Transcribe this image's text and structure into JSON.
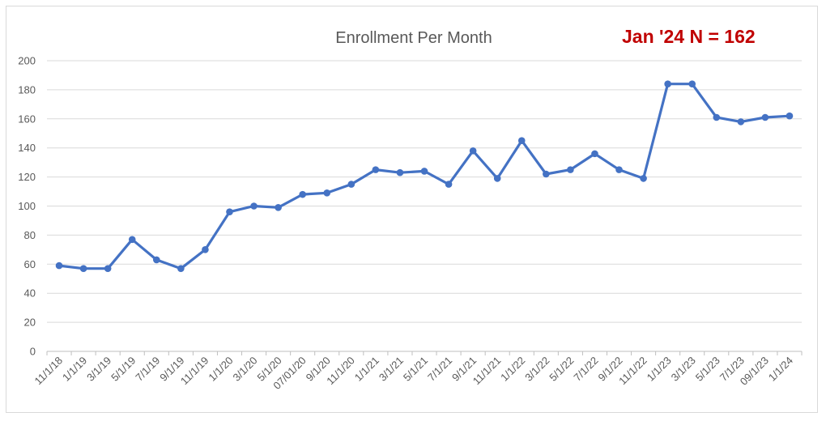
{
  "chart_data": {
    "type": "line",
    "title": "Enrollment Per Month",
    "annotation": "Jan '24 N = 162",
    "xlabel": "",
    "ylabel": "",
    "ylim": [
      0,
      200
    ],
    "yticks": [
      0,
      20,
      40,
      60,
      80,
      100,
      120,
      140,
      160,
      180,
      200
    ],
    "grid": true,
    "legend": "none",
    "colors": {
      "line": "#4472c4",
      "grid": "#d9d9d9",
      "axis": "#bfbfbf",
      "annotation": "#c00000",
      "text": "#595959"
    },
    "tick_labels": [
      "11/1/18",
      "1/1/19",
      "3/1/19",
      "5/1/19",
      "7/1/19",
      "9/1/19",
      "11/1/19",
      "1/1/20",
      "3/1/20",
      "5/1/20",
      "07/01/20",
      "9/1/20",
      "11/1/20",
      "1/1/21",
      "3/1/21",
      "5/1/21",
      "7/1/21",
      "9/1/21",
      "11/1/21",
      "1/1/22",
      "3/1/22",
      "5/1/22",
      "7/1/22",
      "9/1/22",
      "11/1/22",
      "1/1/23",
      "3/1/23",
      "5/1/23",
      "7/1/23",
      "09/1/23",
      "1/1/24"
    ],
    "series": [
      {
        "values": [
          59,
          57,
          57,
          77,
          63,
          57,
          70,
          96,
          100,
          99,
          108,
          109,
          115,
          125,
          123,
          124,
          115,
          138,
          119,
          145,
          122,
          125,
          136,
          125,
          119,
          184,
          184,
          161,
          158,
          161,
          162
        ]
      }
    ]
  }
}
